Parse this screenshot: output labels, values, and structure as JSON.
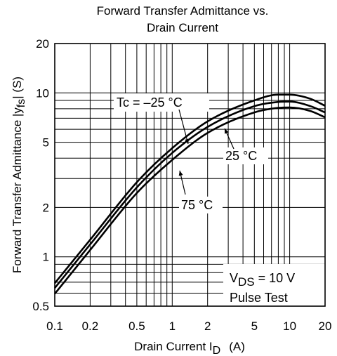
{
  "chart_data": {
    "type": "line",
    "title": [
      "Forward Transfer Admittance vs.",
      "Drain Current"
    ],
    "xlabel": {
      "main": "Drain Current  I",
      "sub": "D",
      "unit": "(A)"
    },
    "ylabel": {
      "main": "Forward Transfer Admittance  |y",
      "sub": "fs",
      "unit": "| (S)"
    },
    "x_scale": "log",
    "y_scale": "log",
    "xlim": [
      0.1,
      20
    ],
    "ylim": [
      0.5,
      20
    ],
    "grid": true,
    "x_ticks": [
      {
        "value": 0.1,
        "label": "0.1"
      },
      {
        "value": 0.2,
        "label": "0.2"
      },
      {
        "value": 0.5,
        "label": "0.5"
      },
      {
        "value": 1,
        "label": "1"
      },
      {
        "value": 2,
        "label": "2"
      },
      {
        "value": 5,
        "label": "5"
      },
      {
        "value": 10,
        "label": "10"
      },
      {
        "value": 20,
        "label": "20"
      }
    ],
    "y_ticks": [
      {
        "value": 0.5,
        "label": "0.5"
      },
      {
        "value": 1,
        "label": "1"
      },
      {
        "value": 2,
        "label": "2"
      },
      {
        "value": 5,
        "label": "5"
      },
      {
        "value": 10,
        "label": "10"
      },
      {
        "value": 20,
        "label": "20"
      }
    ],
    "series": [
      {
        "name": "Tc = −25 °C",
        "points": [
          [
            0.1,
            0.69
          ],
          [
            0.2,
            1.27
          ],
          [
            0.5,
            2.85
          ],
          [
            1,
            4.6
          ],
          [
            2,
            6.7
          ],
          [
            5,
            9.0
          ],
          [
            8,
            9.75
          ],
          [
            10,
            9.75
          ],
          [
            15,
            9.2
          ],
          [
            20,
            8.35
          ]
        ]
      },
      {
        "name": "25 °C",
        "points": [
          [
            0.1,
            0.645
          ],
          [
            0.2,
            1.19
          ],
          [
            0.5,
            2.65
          ],
          [
            1,
            4.3
          ],
          [
            2,
            6.2
          ],
          [
            5,
            8.3
          ],
          [
            8,
            8.8
          ],
          [
            10,
            8.85
          ],
          [
            15,
            8.3
          ],
          [
            20,
            7.6
          ]
        ]
      },
      {
        "name": "75 °C",
        "points": [
          [
            0.1,
            0.595
          ],
          [
            0.2,
            1.1
          ],
          [
            0.5,
            2.45
          ],
          [
            1,
            3.9
          ],
          [
            2,
            5.7
          ],
          [
            5,
            7.6
          ],
          [
            8,
            8.1
          ],
          [
            10,
            8.15
          ],
          [
            15,
            7.75
          ],
          [
            20,
            7.1
          ]
        ]
      }
    ],
    "annotations": {
      "tc_m25": "Tc = –25 °C",
      "tc_25": "25 °C",
      "tc_75": "75 °C",
      "vds_main": "V",
      "vds_sub": "DS",
      "vds_value": " = 10 V",
      "pulse": "Pulse Test"
    }
  }
}
